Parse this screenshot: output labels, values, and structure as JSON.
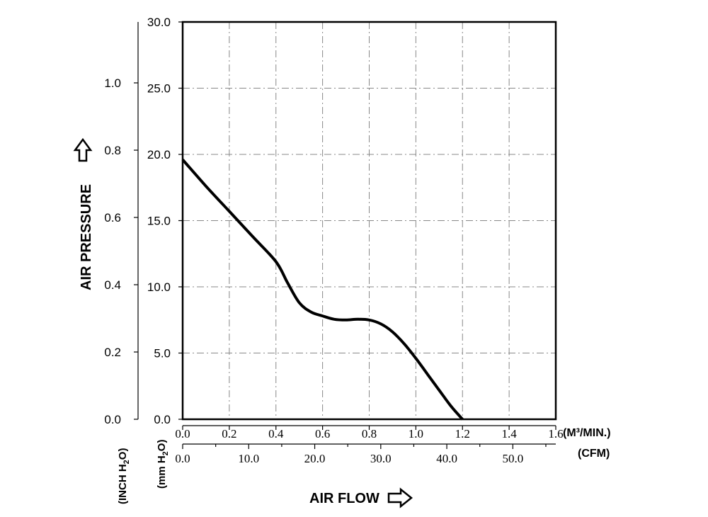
{
  "chart_data": {
    "type": "line",
    "x_axis_primary": {
      "unit_label": "(M³/MIN.)",
      "range": [
        0.0,
        1.6
      ],
      "ticks": [
        "0.0",
        "0.2",
        "0.4",
        "0.6",
        "0.8",
        "1.0",
        "1.2",
        "1.4",
        "1.6"
      ]
    },
    "x_axis_secondary": {
      "unit_label": "(CFM)",
      "ticks": [
        "0.0",
        "10.0",
        "20.0",
        "30.0",
        "40.0",
        "50.0"
      ],
      "tick_values": [
        0,
        10,
        20,
        30,
        40,
        50
      ]
    },
    "y_axis_mm": {
      "unit_label_main": "(mm H",
      "unit_label_sub": "2",
      "unit_label_end": "O)",
      "range": [
        0.0,
        30.0
      ],
      "ticks": [
        "0.0",
        "5.0",
        "10.0",
        "15.0",
        "20.0",
        "25.0",
        "30.0"
      ]
    },
    "y_axis_inch": {
      "unit_label_main": "(INCH H",
      "unit_label_sub": "2",
      "unit_label_end": "O)",
      "ticks": [
        "0.0",
        "0.2",
        "0.4",
        "0.6",
        "0.8",
        "1.0"
      ],
      "tick_values": [
        0.0,
        0.2,
        0.4,
        0.6,
        0.8,
        1.0
      ]
    },
    "xlabel": "AIR FLOW",
    "ylabel": "AIR PRESSURE",
    "grid": true,
    "series": [
      {
        "x": [
          0.0,
          0.1,
          0.2,
          0.3,
          0.4,
          0.45,
          0.5,
          0.55,
          0.6,
          0.65,
          0.7,
          0.75,
          0.8,
          0.85,
          0.9,
          0.95,
          1.0,
          1.05,
          1.1,
          1.15,
          1.2
        ],
        "y": [
          19.6,
          17.6,
          15.7,
          13.8,
          11.9,
          10.3,
          8.8,
          8.1,
          7.8,
          7.55,
          7.5,
          7.55,
          7.5,
          7.2,
          6.6,
          5.7,
          4.6,
          3.4,
          2.2,
          1.0,
          0.0
        ]
      }
    ]
  }
}
